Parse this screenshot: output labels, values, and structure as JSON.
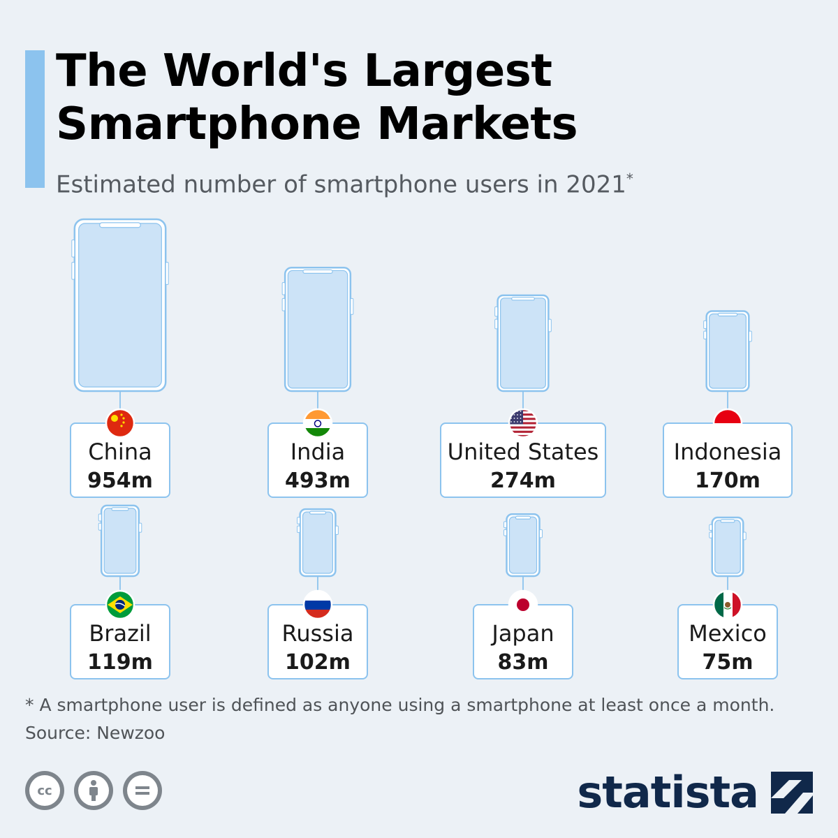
{
  "header": {
    "title": "The World's Largest Smartphone Markets",
    "subtitle": "Estimated number of smartphone users in 2021",
    "subtitle_mark": "*"
  },
  "chart_data": {
    "type": "pictograph",
    "unit": "m",
    "categories": [
      "China",
      "India",
      "United States",
      "Indonesia",
      "Brazil",
      "Russia",
      "Japan",
      "Mexico"
    ],
    "values": [
      954,
      493,
      274,
      170,
      119,
      102,
      83,
      75
    ],
    "value_labels": [
      "954m",
      "493m",
      "274m",
      "170m",
      "119m",
      "102m",
      "83m",
      "75m"
    ],
    "flags": [
      "china-flag",
      "india-flag",
      "us-flag",
      "indonesia-flag",
      "brazil-flag",
      "russia-flag",
      "japan-flag",
      "mexico-flag"
    ]
  },
  "colors": {
    "background": "#ecf1f6",
    "accent": "#8cc3ee",
    "phone_fill": "#cce3f7",
    "phone_stroke": "#8cc3ee",
    "brand": "#10284a"
  },
  "footer": {
    "note": "* A smartphone user is defined as anyone using a smartphone at least once a month.",
    "source": "Source: Newzoo",
    "brand": "statista"
  },
  "license_icons": [
    "cc-icon",
    "attribution-icon",
    "no-derivatives-icon"
  ]
}
